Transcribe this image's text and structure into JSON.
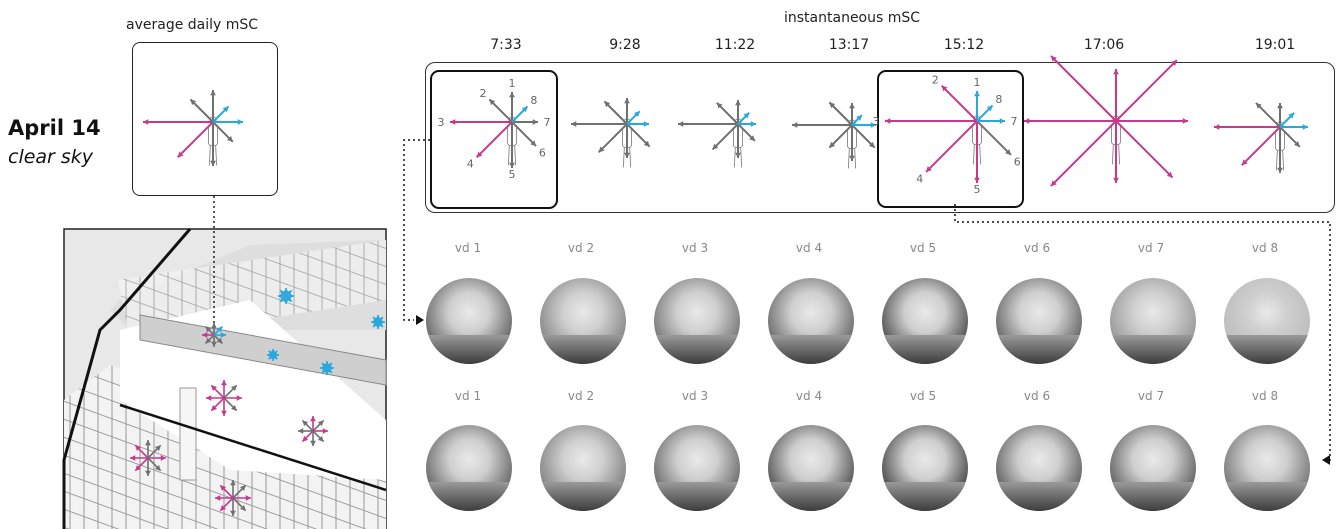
{
  "left": {
    "date": "April 14",
    "sky": "clear sky",
    "avg_title": "average daily mSC"
  },
  "instant": {
    "title": "instantaneous mSC",
    "times": [
      "7:33",
      "9:28",
      "11:22",
      "13:17",
      "15:12",
      "17:06",
      "19:01"
    ]
  },
  "compass_numbers": [
    "1",
    "2",
    "3",
    "4",
    "5",
    "6",
    "7",
    "8"
  ],
  "row1": [
    "vd 1",
    "vd 2",
    "vd 3",
    "vd 4",
    "vd 5",
    "vd 6",
    "vd 7",
    "vd 8"
  ],
  "row2": [
    "vd 1",
    "vd 2",
    "vd 3",
    "vd 4",
    "vd 5",
    "vd 6",
    "vd 7",
    "vd 8"
  ],
  "colors": {
    "magenta": "#c6398b",
    "cyan": "#29a8dc",
    "gray": "#707070"
  }
}
